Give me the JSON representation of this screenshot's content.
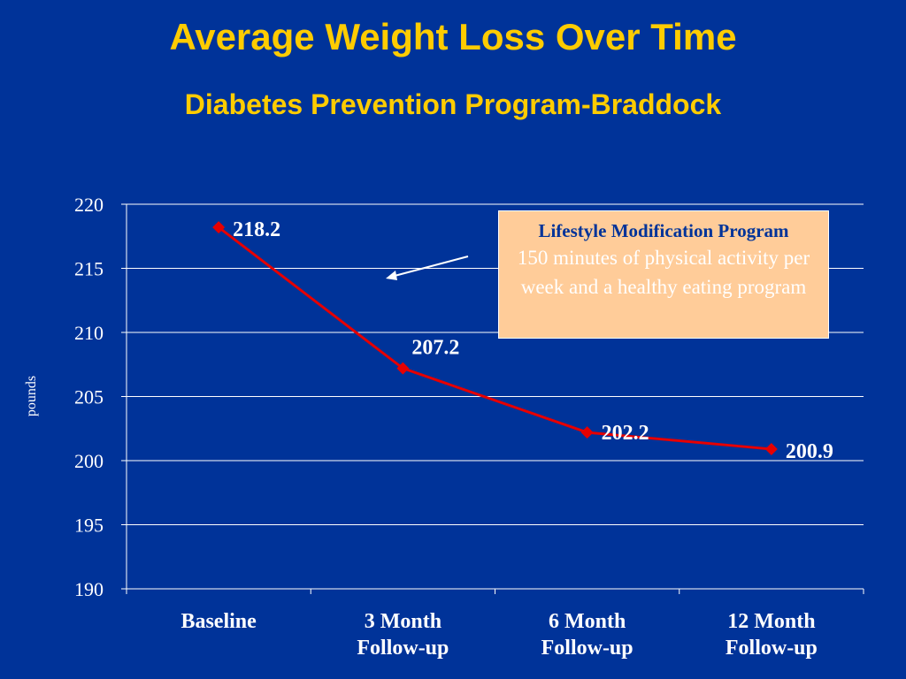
{
  "title": "Average Weight Loss Over Time",
  "subtitle": "Diabetes Prevention Program-Braddock",
  "callout": {
    "heading": "Lifestyle Modification Program",
    "body": "150 minutes of physical activity per week and a healthy eating program"
  },
  "colors": {
    "background": "#003399",
    "title": "#FFCC00",
    "series": "#E60000",
    "callout_fill": "#FFCC99"
  },
  "chart_data": {
    "type": "line",
    "categories": [
      [
        "Baseline"
      ],
      [
        "3 Month",
        "Follow-up"
      ],
      [
        "6 Month",
        "Follow-up"
      ],
      [
        "12 Month",
        "Follow-up"
      ]
    ],
    "series": [
      {
        "values": [
          218.2,
          207.2,
          202.2,
          200.9
        ],
        "labels": [
          "218.2",
          "207.2",
          "202.2",
          "200.9"
        ]
      }
    ],
    "ylabel": "pounds",
    "ylim": [
      190,
      220
    ],
    "yticks": [
      190,
      195,
      200,
      205,
      210,
      215,
      220
    ],
    "grid": true,
    "legend": "none",
    "marker": "diamond"
  }
}
